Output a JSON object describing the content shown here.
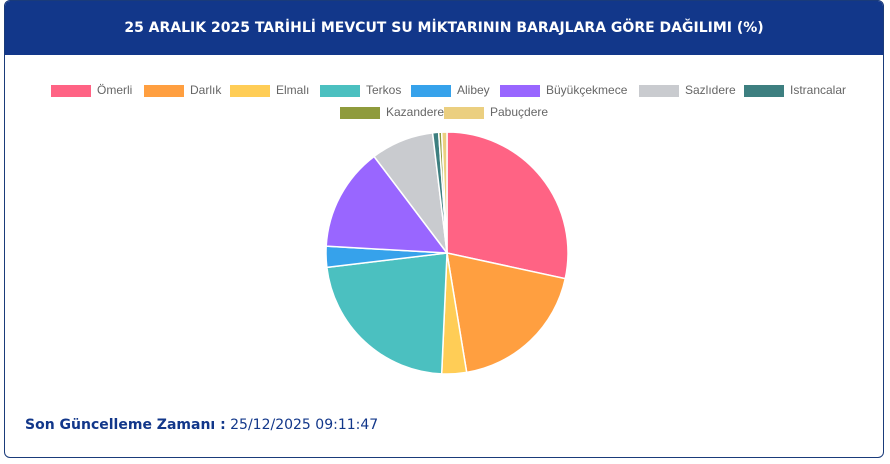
{
  "chart_data": {
    "type": "pie",
    "title": "25 ARALIK 2025 TARİHLİ MEVCUT SU MİKTARININ BARAJLARA GÖRE DAĞILIMI (%)",
    "categories": [
      "Ömerli",
      "Darlık",
      "Elmalı",
      "Terkos",
      "Alibey",
      "Büyükçekmece",
      "Sazlıdere",
      "Istrancalar",
      "Kazandere",
      "Pabuçdere"
    ],
    "values": [
      28.4,
      19.0,
      3.3,
      22.4,
      2.8,
      13.8,
      8.4,
      0.8,
      0.4,
      0.7
    ],
    "colors": [
      "#ff6384",
      "#ff9f40",
      "#ffcd56",
      "#4bc0c0",
      "#36a2eb",
      "#9966ff",
      "#c9cbcf",
      "#3d7f80",
      "#8f9b3c",
      "#ebcf80"
    ],
    "legend": "top"
  },
  "footer": {
    "label": "Son Güncelleme Zamanı :",
    "value": "25/12/2025 09:11:47"
  }
}
